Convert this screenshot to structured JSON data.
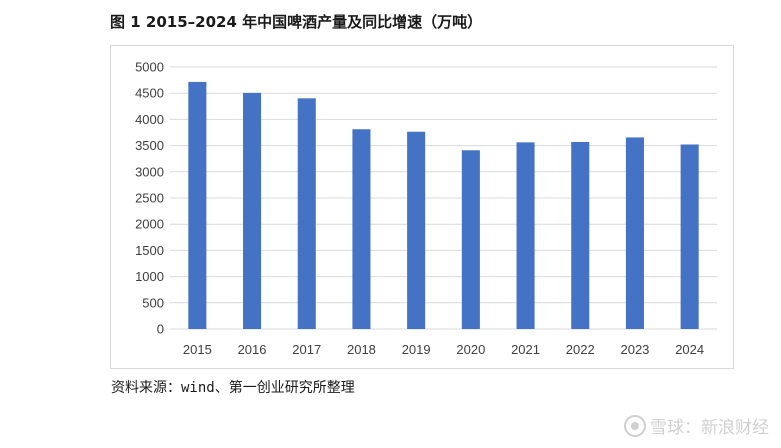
{
  "title": "图 1 2015–2024 年中国啤酒产量及同比增速（万吨）",
  "source": "资料来源：wind、第一创业研究所整理",
  "watermark": "雪球：新浪财经",
  "colors": {
    "bar": "#4472C4",
    "grid": "#d9d9d9",
    "axis_text": "#404040"
  },
  "chart_data": {
    "type": "bar",
    "categories": [
      "2015",
      "2016",
      "2017",
      "2018",
      "2019",
      "2020",
      "2021",
      "2022",
      "2023",
      "2024"
    ],
    "values": [
      4715,
      4506,
      4402,
      3812,
      3765,
      3411,
      3562,
      3569,
      3656,
      3521
    ],
    "ylim": [
      0,
      5000
    ],
    "yticks": [
      0,
      500,
      1000,
      1500,
      2000,
      2500,
      3000,
      3500,
      4000,
      4500,
      5000
    ],
    "grid": true,
    "legend": "none"
  }
}
